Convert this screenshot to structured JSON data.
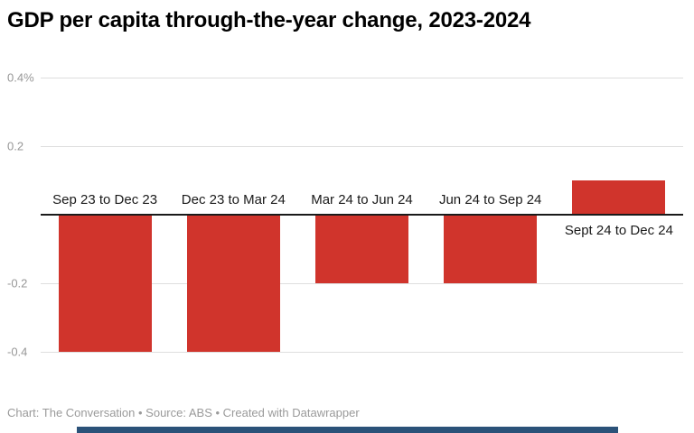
{
  "header": {
    "title": "GDP per capita through-the-year change, 2023-2024"
  },
  "footer": {
    "credit": "Chart: The Conversation • Source: ABS • Created with Datawrapper"
  },
  "colors": {
    "bar_red": "#d0342c",
    "gridline": "#dedede",
    "zero_line": "#1a1a1a",
    "scrollbar_blue": "#2b5279"
  },
  "chart_data": {
    "type": "bar",
    "title": "GDP per capita through-the-year change, 2023-2024",
    "categories": [
      "Sep 23 to Dec 23",
      "Dec 23 to Mar 24",
      "Mar 24 to Jun 24",
      "Jun 24 to Sep 24",
      "Sept 24 to Dec 24"
    ],
    "values": [
      -0.4,
      -0.4,
      -0.2,
      -0.2,
      0.1
    ],
    "unit": "%",
    "ylim": [
      -0.45,
      0.45
    ],
    "yticks": [
      {
        "value": 0.4,
        "label": "0.4%"
      },
      {
        "value": 0.2,
        "label": "0.2"
      },
      {
        "value": -0.2,
        "label": "-0.2"
      },
      {
        "value": -0.4,
        "label": "-0.4"
      }
    ],
    "grid": true,
    "legend": "none",
    "bar_color": "#d0342c",
    "gridline_color": "#dedede",
    "zero_line_color": "#1a1a1a"
  }
}
